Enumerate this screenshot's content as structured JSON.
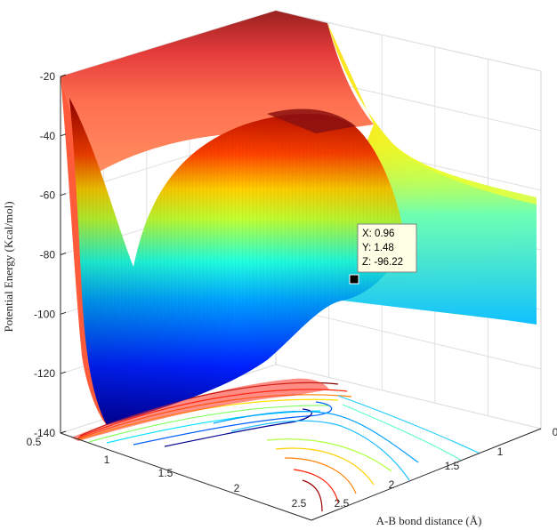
{
  "chart_data": {
    "type": "surface",
    "zlabel": "Potential Energy (Kcal/mol)",
    "xlabel": "A-B bond distance (Å)",
    "zlim": [
      -140,
      -20
    ],
    "z_ticks": [
      "-20",
      "-40",
      "-60",
      "-80",
      "-100",
      "-120",
      "-140"
    ],
    "left_axis_ticks": [
      "0.5",
      "1",
      "1.5",
      "2",
      "2.5"
    ],
    "right_axis_ticks": [
      "2.5",
      "2",
      "1.5",
      "1",
      "0"
    ],
    "grid": true,
    "colormap": "jet",
    "contour_projection": true,
    "datatip": {
      "x_label": "X: 0.96",
      "y_label": "Y: 1.48",
      "z_label": "Z: -96.22",
      "x": 0.96,
      "y": 1.48,
      "z": -96.22
    }
  }
}
